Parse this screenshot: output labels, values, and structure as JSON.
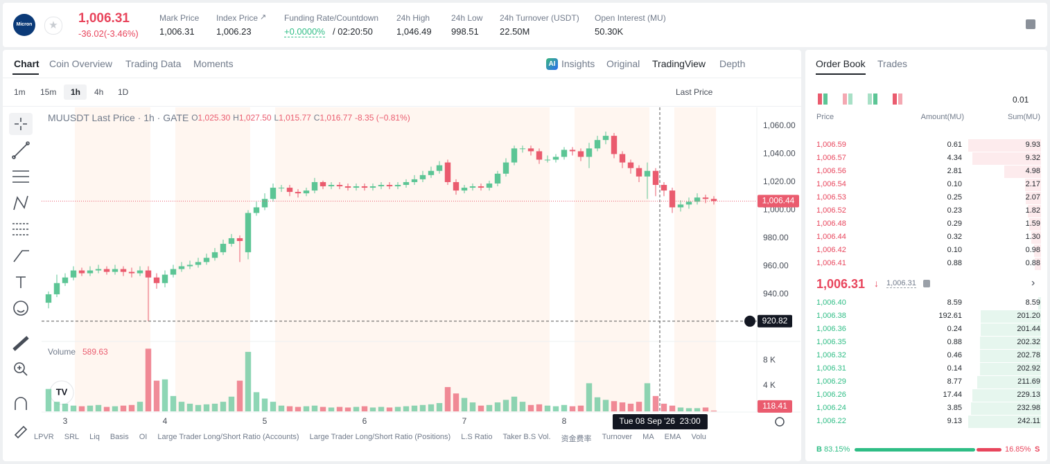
{
  "header": {
    "logo": "Micron",
    "price": "1,006.31",
    "change": "-36.02(-3.46%)",
    "stats": [
      {
        "label": "Mark Price",
        "value": "1,006.31"
      },
      {
        "label": "Index Price",
        "value": "1,006.23"
      },
      {
        "label": "Funding Rate/Countdown",
        "value": "+0.0000%",
        "extra": "/ 02:20:50"
      },
      {
        "label": "24h High",
        "value": "1,046.49"
      },
      {
        "label": "24h Low",
        "value": "998.51"
      },
      {
        "label": "24h Turnover (USDT)",
        "value": "22.50M"
      },
      {
        "label": "Open Interest (MU)",
        "value": "50.30K"
      }
    ]
  },
  "tabs": [
    "Chart",
    "Coin Overview",
    "Trading Data",
    "Moments"
  ],
  "views": [
    "Insights",
    "Original",
    "TradingView",
    "Depth"
  ],
  "intervals": [
    "1m",
    "15m",
    "1h",
    "4h",
    "1D"
  ],
  "price_source": "Last Price",
  "chart_data": {
    "type": "candlestick",
    "title": "MUUSDT Last Price · 1h · GATE",
    "legend": [
      {
        "key": "O",
        "value": "1,025.30"
      },
      {
        "key": "H",
        "value": "1,027.50"
      },
      {
        "key": "L",
        "value": "1,015.77"
      },
      {
        "key": "C",
        "value": "1,016.77"
      }
    ],
    "change": "-8.35 (−0.81%)",
    "categories": [
      null,
      null,
      "3",
      null,
      null,
      null,
      null,
      null,
      null,
      null,
      null,
      null,
      null,
      null,
      "4",
      null,
      null,
      null,
      null,
      null,
      null,
      null,
      null,
      null,
      null,
      null,
      "5",
      null,
      null,
      null,
      null,
      null,
      null,
      null,
      null,
      null,
      null,
      null,
      "6",
      null,
      null,
      null,
      null,
      null,
      null,
      null,
      null,
      null,
      null,
      null,
      "7",
      null,
      null,
      null,
      null,
      null,
      null,
      null,
      null,
      null,
      null,
      null,
      "8",
      null,
      null,
      null,
      null,
      null,
      null,
      null,
      null,
      null,
      null,
      null,
      null,
      null,
      null,
      null,
      null,
      null,
      null
    ],
    "open": [
      934,
      940,
      948,
      952,
      957,
      955,
      957,
      958,
      956,
      958,
      956,
      955,
      957,
      952,
      948,
      954,
      958,
      960,
      961,
      963,
      966,
      970,
      976,
      980,
      970,
      998,
      1002,
      1008,
      1016,
      1016,
      1013,
      1012,
      1014,
      1020,
      1017,
      1018,
      1017,
      1016,
      1017,
      1016,
      1017,
      1018,
      1017,
      1018,
      1020,
      1022,
      1025,
      1028,
      1034,
      1020,
      1014,
      1016,
      1017,
      1016,
      1019,
      1026,
      1034,
      1044,
      1044,
      1042,
      1036,
      1036,
      1038,
      1043,
      1042,
      1038,
      1044,
      1050,
      1053,
      1040,
      1034,
      1030,
      1024,
      1028,
      1018,
      1014,
      1002,
      1004,
      1006,
      1009,
      1008
    ],
    "high": [
      942,
      954,
      955,
      960,
      959,
      960,
      961,
      960,
      961,
      960,
      959,
      960,
      960,
      955,
      957,
      961,
      963,
      964,
      966,
      969,
      973,
      979,
      983,
      982,
      1000,
      1006,
      1012,
      1019,
      1018,
      1018,
      1015,
      1016,
      1023,
      1021,
      1020,
      1020,
      1019,
      1019,
      1019,
      1019,
      1020,
      1020,
      1020,
      1022,
      1025,
      1028,
      1031,
      1035,
      1036,
      1022,
      1018,
      1019,
      1019,
      1021,
      1028,
      1037,
      1046,
      1046,
      1046,
      1044,
      1039,
      1040,
      1045,
      1045,
      1044,
      1048,
      1053,
      1056,
      1055,
      1042,
      1036,
      1032,
      1034,
      1030,
      1020,
      1016,
      1007,
      1009,
      1012,
      1011,
      1010
    ],
    "low": [
      930,
      938,
      946,
      950,
      953,
      953,
      955,
      954,
      954,
      953,
      952,
      953,
      920.82,
      944,
      945,
      952,
      956,
      958,
      959,
      961,
      964,
      968,
      974,
      963,
      965,
      996,
      1000,
      1006,
      1013,
      1010,
      1009,
      1010,
      1012,
      1015,
      1015,
      1015,
      1014,
      1014,
      1014,
      1014,
      1015,
      1015,
      1015,
      1016,
      1018,
      1020,
      1023,
      1026,
      1018,
      1011,
      1012,
      1014,
      1014,
      1014,
      1017,
      1024,
      1032,
      1041,
      1039,
      1033,
      1034,
      1034,
      1036,
      1039,
      1035,
      1030,
      1042,
      1047,
      1037,
      1030,
      1026,
      1020,
      1008,
      1010,
      1010,
      998,
      999,
      1001,
      1004,
      1005,
      1004
    ],
    "close": [
      940,
      948,
      952,
      957,
      955,
      957,
      958,
      956,
      958,
      956,
      955,
      957,
      952,
      948,
      954,
      958,
      960,
      961,
      963,
      966,
      970,
      976,
      980,
      978,
      998,
      1002,
      1008,
      1016,
      1016,
      1013,
      1012,
      1014,
      1020,
      1017,
      1018,
      1017,
      1016,
      1017,
      1016,
      1017,
      1018,
      1017,
      1018,
      1020,
      1022,
      1025,
      1028,
      1032,
      1020,
      1014,
      1016,
      1017,
      1016,
      1019,
      1026,
      1034,
      1044,
      1044,
      1042,
      1036,
      1036,
      1038,
      1043,
      1042,
      1038,
      1044,
      1050,
      1053,
      1040,
      1034,
      1030,
      1024,
      1028,
      1018,
      1014,
      1002,
      1004,
      1006,
      1009,
      1008,
      1006.44
    ],
    "volume": [
      3500,
      1500,
      1200,
      900,
      800,
      900,
      1000,
      700,
      800,
      900,
      1000,
      1500,
      9800,
      4800,
      5000,
      2400,
      1500,
      1200,
      1000,
      1100,
      1200,
      1500,
      2300,
      4800,
      9300,
      3000,
      2000,
      1500,
      900,
      800,
      700,
      800,
      900,
      700,
      600,
      700,
      600,
      700,
      800,
      600,
      700,
      600,
      700,
      800,
      900,
      1000,
      1100,
      1300,
      3800,
      2800,
      2100,
      1400,
      900,
      1000,
      1400,
      1800,
      2300,
      1500,
      1000,
      1100,
      900,
      800,
      1000,
      800,
      900,
      4400,
      2200,
      1800,
      1600,
      1400,
      1200,
      1500,
      4400,
      2400,
      1200,
      900,
      600,
      500,
      500,
      600,
      118.41
    ],
    "ylim": [
      906.9,
      1073.3
    ],
    "yticks": [
      {
        "value": 940,
        "label": "940.00"
      },
      {
        "value": 960,
        "label": "960.00"
      },
      {
        "value": 980,
        "label": "980.00"
      },
      {
        "value": 1000,
        "label": "1,000.00"
      },
      {
        "value": 1020,
        "label": "1,020.00"
      },
      {
        "value": 1040,
        "label": "1,040.00"
      },
      {
        "value": 1060,
        "label": "1,060.00"
      }
    ],
    "last_price": {
      "value": 1006.44,
      "label": "1,006.44"
    },
    "crosshair": {
      "value": 920.82,
      "label": "920.82",
      "time": "Tue 08 Sep '26  23:00"
    },
    "volume_pane": {
      "title": "Volume",
      "value": "589.63",
      "ylim": [
        0,
        10500
      ],
      "yticks": [
        {
          "value": 4000,
          "label": "4 K"
        },
        {
          "value": 8000,
          "label": "8 K"
        }
      ],
      "last": {
        "value": 118.41,
        "label": "118.41"
      }
    },
    "colors": {
      "up": "#5cc595",
      "down": "#ea5b6e"
    }
  },
  "indicators": [
    "LPVR",
    "SRL",
    "Liq",
    "Basis",
    "OI",
    "Large Trader Long/Short Ratio (Accounts)",
    "Large Trader Long/Short Ratio (Positions)",
    "L.S Ratio",
    "Taker B.S Vol.",
    "资金费率",
    "Turnover",
    "MA",
    "EMA",
    "Volu"
  ],
  "order_book": {
    "tabs": [
      "Order Book",
      "Trades"
    ],
    "precision": "0.01",
    "columns": [
      "Price",
      "Amount(MU)",
      "Sum(MU)"
    ],
    "asks": [
      [
        "1,006.59",
        "0.61",
        "9.93"
      ],
      [
        "1,006.57",
        "4.34",
        "9.32"
      ],
      [
        "1,006.56",
        "2.81",
        "4.98"
      ],
      [
        "1,006.54",
        "0.10",
        "2.17"
      ],
      [
        "1,006.53",
        "0.25",
        "2.07"
      ],
      [
        "1,006.52",
        "0.23",
        "1.82"
      ],
      [
        "1,006.48",
        "0.29",
        "1.59"
      ],
      [
        "1,006.44",
        "0.32",
        "1.30"
      ],
      [
        "1,006.42",
        "0.10",
        "0.98"
      ],
      [
        "1,006.41",
        "0.88",
        "0.88"
      ]
    ],
    "mid": {
      "price": "1,006.31",
      "mark": "1,006.31"
    },
    "bids": [
      [
        "1,006.40",
        "8.59",
        "8.59"
      ],
      [
        "1,006.38",
        "192.61",
        "201.20"
      ],
      [
        "1,006.36",
        "0.24",
        "201.44"
      ],
      [
        "1,006.35",
        "0.88",
        "202.32"
      ],
      [
        "1,006.32",
        "0.46",
        "202.78"
      ],
      [
        "1,006.31",
        "0.14",
        "202.92"
      ],
      [
        "1,006.29",
        "8.77",
        "211.69"
      ],
      [
        "1,006.26",
        "17.44",
        "229.13"
      ],
      [
        "1,006.24",
        "3.85",
        "232.98"
      ],
      [
        "1,006.22",
        "9.13",
        "242.11"
      ]
    ],
    "ratio": {
      "buy_letter": "B",
      "buy": "83.15%",
      "sell": "16.85%",
      "sell_letter": "S"
    }
  }
}
